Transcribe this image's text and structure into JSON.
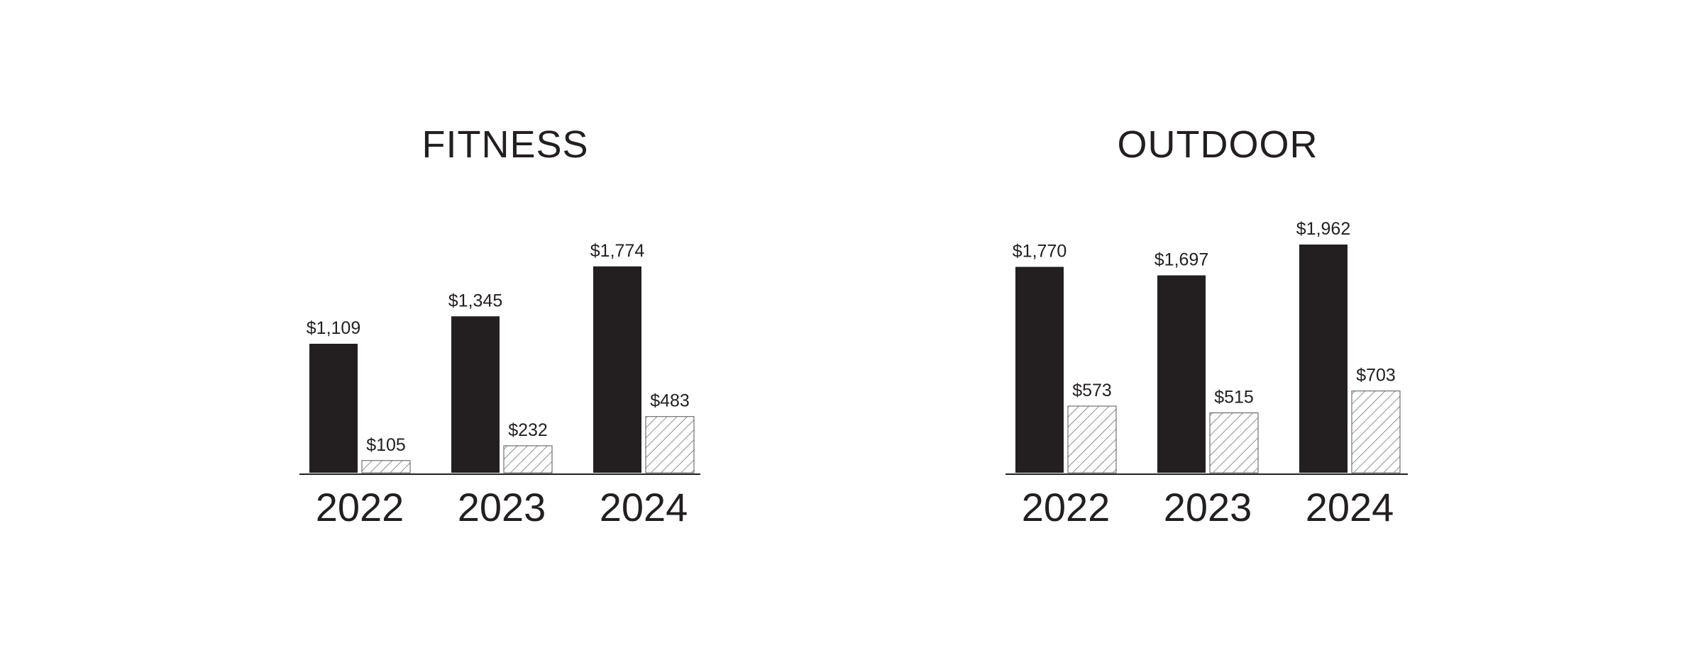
{
  "chart_data": [
    {
      "type": "bar",
      "title": "FITNESS",
      "categories": [
        "2022",
        "2023",
        "2024"
      ],
      "series": [
        {
          "color": "#231f20",
          "fill": "solid",
          "values": [
            1109,
            1345,
            1774
          ],
          "value_labels": [
            "$1,109",
            "$1,345",
            "$1,774"
          ]
        },
        {
          "color": "#555555",
          "fill": "hatch",
          "values": [
            105,
            232,
            483
          ],
          "value_labels": [
            "$105",
            "$232",
            "$483"
          ]
        }
      ]
    },
    {
      "type": "bar",
      "title": "OUTDOOR",
      "categories": [
        "2022",
        "2023",
        "2024"
      ],
      "series": [
        {
          "color": "#231f20",
          "fill": "solid",
          "values": [
            1770,
            1697,
            1962
          ],
          "value_labels": [
            "$1,770",
            "$1,697",
            "$1,962"
          ]
        },
        {
          "color": "#555555",
          "fill": "hatch",
          "values": [
            573,
            515,
            703
          ],
          "value_labels": [
            "$573",
            "$515",
            "$703"
          ]
        }
      ]
    }
  ]
}
